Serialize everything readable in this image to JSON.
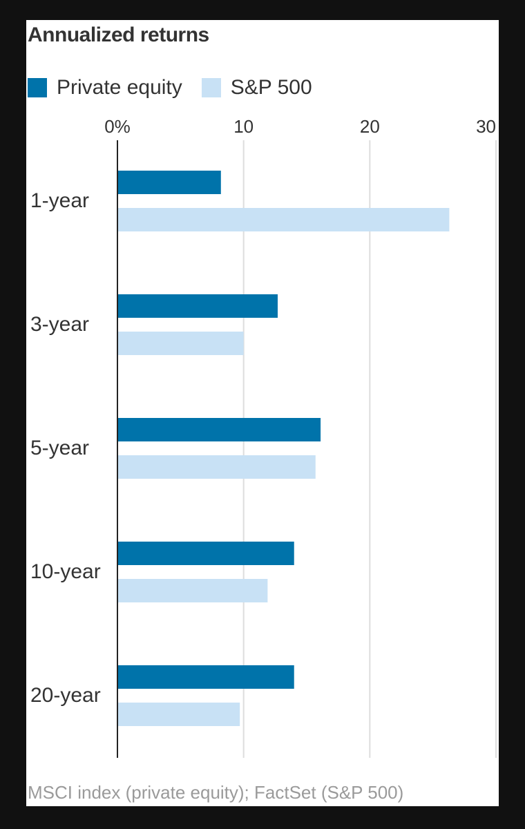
{
  "title": "Annualized returns",
  "source": "MSCI index (private equity); FactSet (S&P 500)",
  "colors": {
    "private_equity": "#0073aa",
    "sp500": "#c8e1f5",
    "grid": "#dddddd",
    "axis": "#222222"
  },
  "chart_data": {
    "type": "bar",
    "orientation": "horizontal",
    "categories": [
      "1-year",
      "3-year",
      "5-year",
      "10-year",
      "20-year"
    ],
    "series": [
      {
        "name": "Private equity",
        "values": [
          8.2,
          12.7,
          16.1,
          14.0,
          14.0
        ]
      },
      {
        "name": "S&P 500",
        "values": [
          26.3,
          10.0,
          15.7,
          11.9,
          9.7
        ]
      }
    ],
    "xlim": [
      0,
      30
    ],
    "xticks": [
      0,
      10,
      20,
      30
    ],
    "xtick_labels": [
      "0%",
      "10",
      "20",
      "30"
    ],
    "grid": true,
    "legend_position": "top-left"
  }
}
